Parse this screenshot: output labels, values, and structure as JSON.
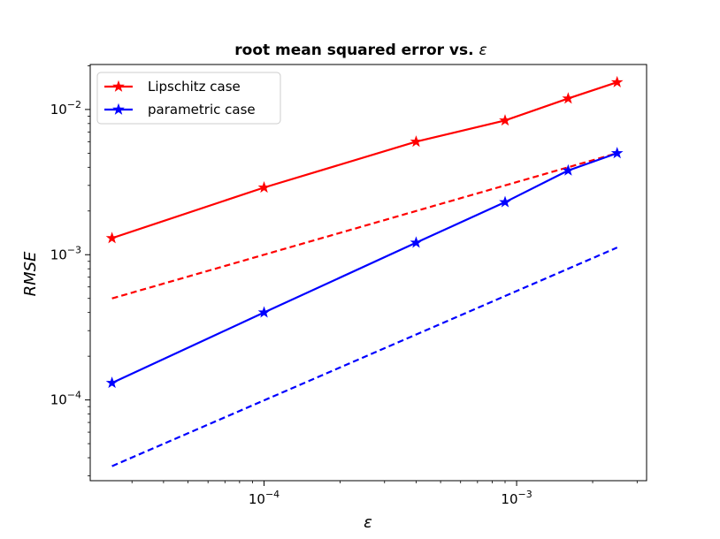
{
  "chart_data": {
    "type": "line",
    "title": "root mean squared error vs. ",
    "title_symbol": "ε",
    "xlabel": "ε",
    "ylabel": "RMSE",
    "xscale": "log",
    "yscale": "log",
    "xlim": [
      2.05e-05,
      0.00327
    ],
    "ylim": [
      2.78e-05,
      0.0204
    ],
    "grid": false,
    "legend_position": "top-left",
    "x_ticks": [
      {
        "value": 0.0001,
        "base": "10",
        "exp": "−4"
      },
      {
        "value": 0.001,
        "base": "10",
        "exp": "−3"
      }
    ],
    "y_ticks": [
      {
        "value": 0.0001,
        "base": "10",
        "exp": "−4"
      },
      {
        "value": 0.001,
        "base": "10",
        "exp": "−3"
      },
      {
        "value": 0.01,
        "base": "10",
        "exp": "−2"
      }
    ],
    "series": [
      {
        "name": "Lipschitz case",
        "color": "#ff0000",
        "marker": "star",
        "x": [
          2.5e-05,
          0.0001,
          0.0004,
          0.0009,
          0.0016,
          0.0025
        ],
        "y": [
          0.0013,
          0.0029,
          0.006,
          0.0084,
          0.0119,
          0.0154
        ]
      },
      {
        "name": "parametric case",
        "color": "#0000ff",
        "marker": "star",
        "x": [
          2.5e-05,
          0.0001,
          0.0004,
          0.0009,
          0.0016,
          0.0025
        ],
        "y": [
          0.000131,
          0.0004,
          0.00121,
          0.0023,
          0.0038,
          0.005
        ]
      }
    ],
    "reference_lines": [
      {
        "color": "#ff0000",
        "style": "dashed",
        "x": [
          2.5e-05,
          0.0025
        ],
        "y": [
          0.0005,
          0.005
        ]
      },
      {
        "color": "#0000ff",
        "style": "dashed",
        "x": [
          2.5e-05,
          0.0025
        ],
        "y": [
          3.5e-05,
          0.00112
        ]
      }
    ]
  }
}
